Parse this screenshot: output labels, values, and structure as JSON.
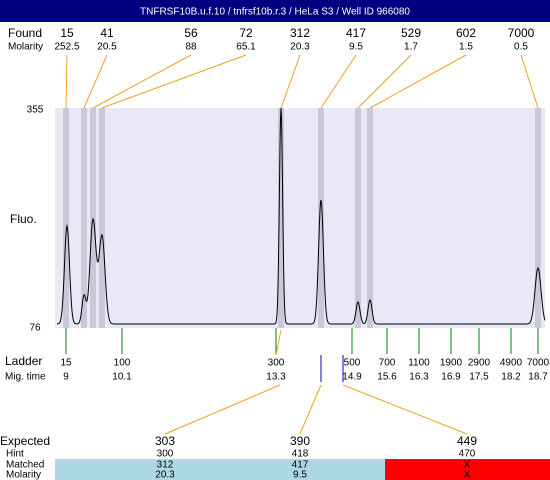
{
  "title": "TNFRSF10B.u.f.10 / tnfrsf10b.r.3 / HeLa S3 / Well ID 966080",
  "found": {
    "label": "Found",
    "molarity_label": "Molarity",
    "peaks": [
      {
        "size": 15,
        "molarity": 252.5
      },
      {
        "size": 41,
        "molarity": 20.5
      },
      {
        "size": 56,
        "molarity": 88
      },
      {
        "size": 72,
        "molarity": 65.1
      },
      {
        "size": 312,
        "molarity": 20.3
      },
      {
        "size": 417,
        "molarity": 9.5
      },
      {
        "size": 529,
        "molarity": 1.7
      },
      {
        "size": 602,
        "molarity": 1.5
      },
      {
        "size": 7000,
        "molarity": 0.5
      }
    ]
  },
  "fluo": {
    "label": "Fluo.",
    "max": 355,
    "min": 76
  },
  "ladder": {
    "label": "Ladder",
    "mig_label": "Mig. time",
    "bands": [
      {
        "size": 15,
        "time": 9
      },
      {
        "size": 100,
        "time": 10.1
      },
      {
        "size": 300,
        "time": 13.3
      },
      {
        "size": 500,
        "time": 14.9
      },
      {
        "size": 700,
        "time": 15.6
      },
      {
        "size": 1100,
        "time": 16.3
      },
      {
        "size": 1900,
        "time": 16.9
      },
      {
        "size": 2900,
        "time": 17.5
      },
      {
        "size": 4900,
        "time": 18.2
      },
      {
        "size": 7000,
        "time": 18.7
      }
    ]
  },
  "expected": {
    "label": "Expected",
    "hint_label": "Hint",
    "matched_label": "Matched",
    "molarity_label": "Molarity",
    "columns": [
      {
        "expected": 303,
        "hint": 300,
        "matched": 312,
        "molarity": 20.3
      },
      {
        "expected": 390,
        "hint": 418,
        "matched": 417,
        "molarity": 9.5
      },
      {
        "expected": 449,
        "hint": 470,
        "matched": "X",
        "molarity": "X"
      }
    ]
  }
}
